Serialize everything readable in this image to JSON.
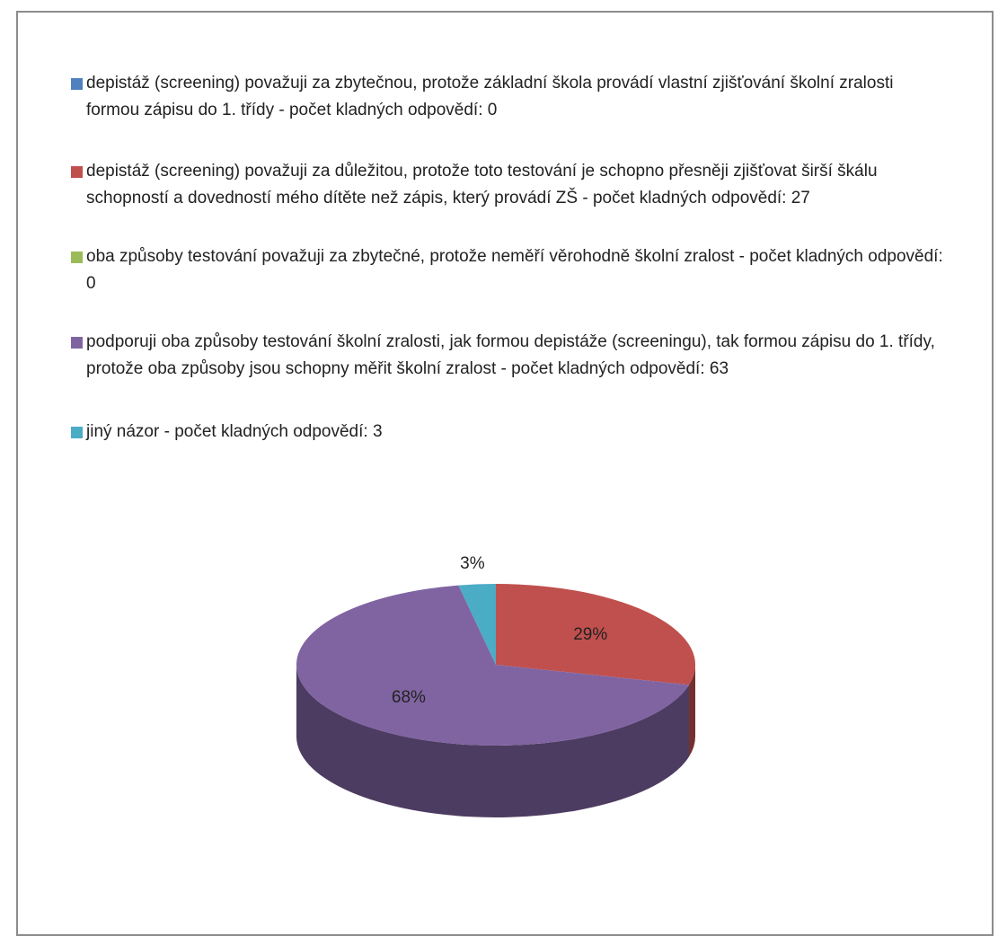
{
  "chart_data": {
    "type": "pie",
    "categories": [
      "depistáž (screening) považuji za zbytečnou, protože základní škola provádí vlastní zjišťování školní zralosti formou zápisu do 1. třídy - počet kladných odpovědí: 0",
      "depistáž (screening) považuji za důležitou, protože toto testování je schopno přesněji zjišťovat širší škálu schopností a dovedností mého dítěte než zápis, který provádí ZŠ - počet kladných odpovědí: 27",
      "oba způsoby testování považuji za zbytečné, protože neměří věrohodně školní zralost - počet kladných odpovědí: 0",
      "podporuji oba způsoby testování školní zralosti, jak formou depistáže (screeningu), tak formou zápisu do 1. třídy, protože oba způsoby jsou schopny měřit školní zralost - počet kladných odpovědí: 63",
      "jiný názor - počet kladných odpovědí: 3"
    ],
    "values": [
      0,
      29,
      0,
      68,
      3
    ],
    "value_labels": [
      null,
      "29%",
      null,
      "68%",
      "3%"
    ],
    "colors": [
      "#4f81bd",
      "#c0504d",
      "#9bbb59",
      "#8064a2",
      "#4bacc6"
    ]
  }
}
